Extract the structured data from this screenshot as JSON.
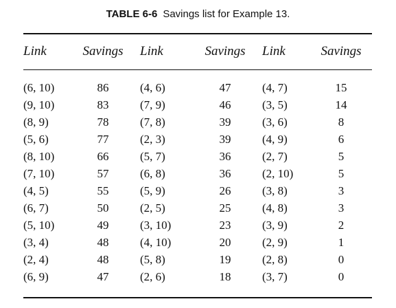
{
  "caption": {
    "label": "TABLE 6-6",
    "title": "Savings list for Example 13."
  },
  "headers": [
    "Link",
    "Savings",
    "Link",
    "Savings",
    "Link",
    "Savings"
  ],
  "rows": [
    [
      "(6, 10)",
      "86",
      "(4, 6)",
      "47",
      "(4, 7)",
      "15"
    ],
    [
      "(9, 10)",
      "83",
      "(7, 9)",
      "46",
      "(3, 5)",
      "14"
    ],
    [
      "(8, 9)",
      "78",
      "(7, 8)",
      "39",
      "(3, 6)",
      "8"
    ],
    [
      "(5, 6)",
      "77",
      "(2, 3)",
      "39",
      "(4, 9)",
      "6"
    ],
    [
      "(8, 10)",
      "66",
      "(5, 7)",
      "36",
      "(2, 7)",
      "5"
    ],
    [
      "(7, 10)",
      "57",
      "(6, 8)",
      "36",
      "(2, 10)",
      "5"
    ],
    [
      "(4, 5)",
      "55",
      "(5, 9)",
      "26",
      "(3, 8)",
      "3"
    ],
    [
      "(6, 7)",
      "50",
      "(2, 5)",
      "25",
      "(4, 8)",
      "3"
    ],
    [
      "(5, 10)",
      "49",
      "(3, 10)",
      "23",
      "(3, 9)",
      "2"
    ],
    [
      "(3, 4)",
      "48",
      "(4, 10)",
      "20",
      "(2, 9)",
      "1"
    ],
    [
      "(2, 4)",
      "48",
      "(5, 8)",
      "19",
      "(2, 8)",
      "0"
    ],
    [
      "(6, 9)",
      "47",
      "(2, 6)",
      "18",
      "(3, 7)",
      "0"
    ]
  ]
}
